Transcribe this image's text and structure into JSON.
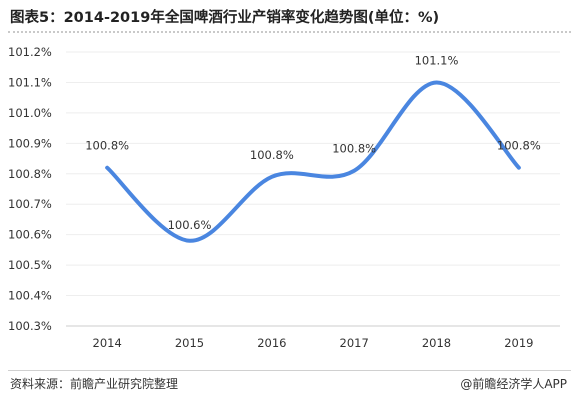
{
  "page": {
    "title": "图表5：2014-2019年全国啤酒行业产销率变化趋势图(单位：%)",
    "source": "资料来源：前瞻产业研究院整理",
    "credit": "@前瞻经济学人APP"
  },
  "colors": {
    "line": "#4a86e0",
    "grid": "#eeeeee",
    "axis": "#cccccc"
  },
  "chart_data": {
    "type": "line",
    "title": "图表5：2014-2019年全国啤酒行业产销率变化趋势图(单位：%)",
    "xlabel": "",
    "ylabel": "",
    "categories": [
      "2014",
      "2015",
      "2016",
      "2017",
      "2018",
      "2019"
    ],
    "series": [
      {
        "values": [
          100.82,
          100.58,
          100.79,
          100.81,
          101.1,
          100.82
        ],
        "labels": [
          "100.8%",
          "100.6%",
          "100.8%",
          "100.8%",
          "101.1%",
          "100.8%"
        ]
      }
    ],
    "ylim": [
      100.3,
      101.2
    ],
    "yticks": [
      "100.3%",
      "100.4%",
      "100.5%",
      "100.6%",
      "100.7%",
      "100.8%",
      "100.9%",
      "101.0%",
      "101.1%",
      "101.2%"
    ],
    "grid": true,
    "smooth": true,
    "legend": "none"
  }
}
